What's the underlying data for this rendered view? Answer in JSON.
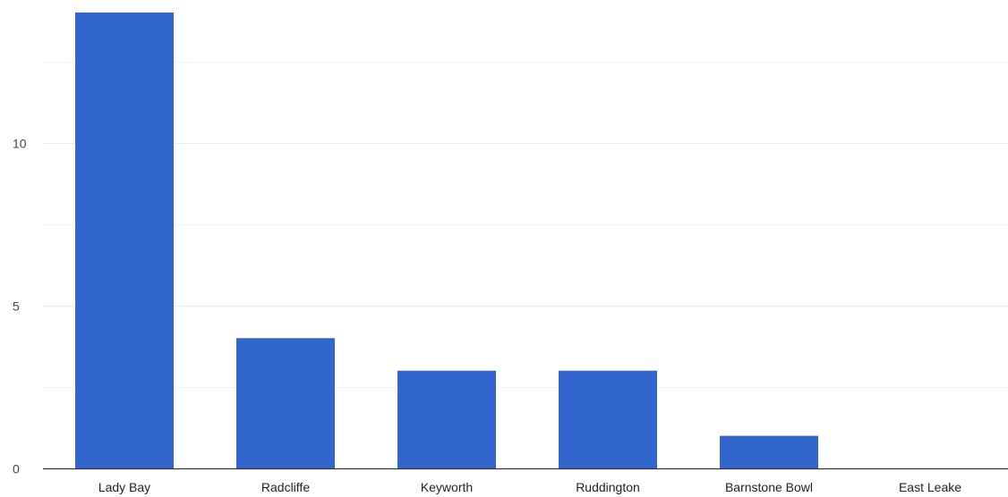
{
  "chart_data": {
    "type": "bar",
    "title": "",
    "xlabel": "",
    "ylabel": "",
    "categories": [
      "Lady Bay",
      "Radcliffe",
      "Keyworth",
      "Ruddington",
      "Barnstone Bowl",
      "East Leake"
    ],
    "values": [
      14,
      4,
      3,
      3,
      1,
      0
    ],
    "ylim": [
      0,
      14
    ],
    "yticks": [
      0,
      5,
      10
    ],
    "minor_gridlines": [
      2.5,
      7.5,
      12.5
    ],
    "grid": true,
    "legend": "none",
    "bar_color": "#3366cc",
    "grid_color": "#ebebeb",
    "axis_color": "#333333"
  }
}
